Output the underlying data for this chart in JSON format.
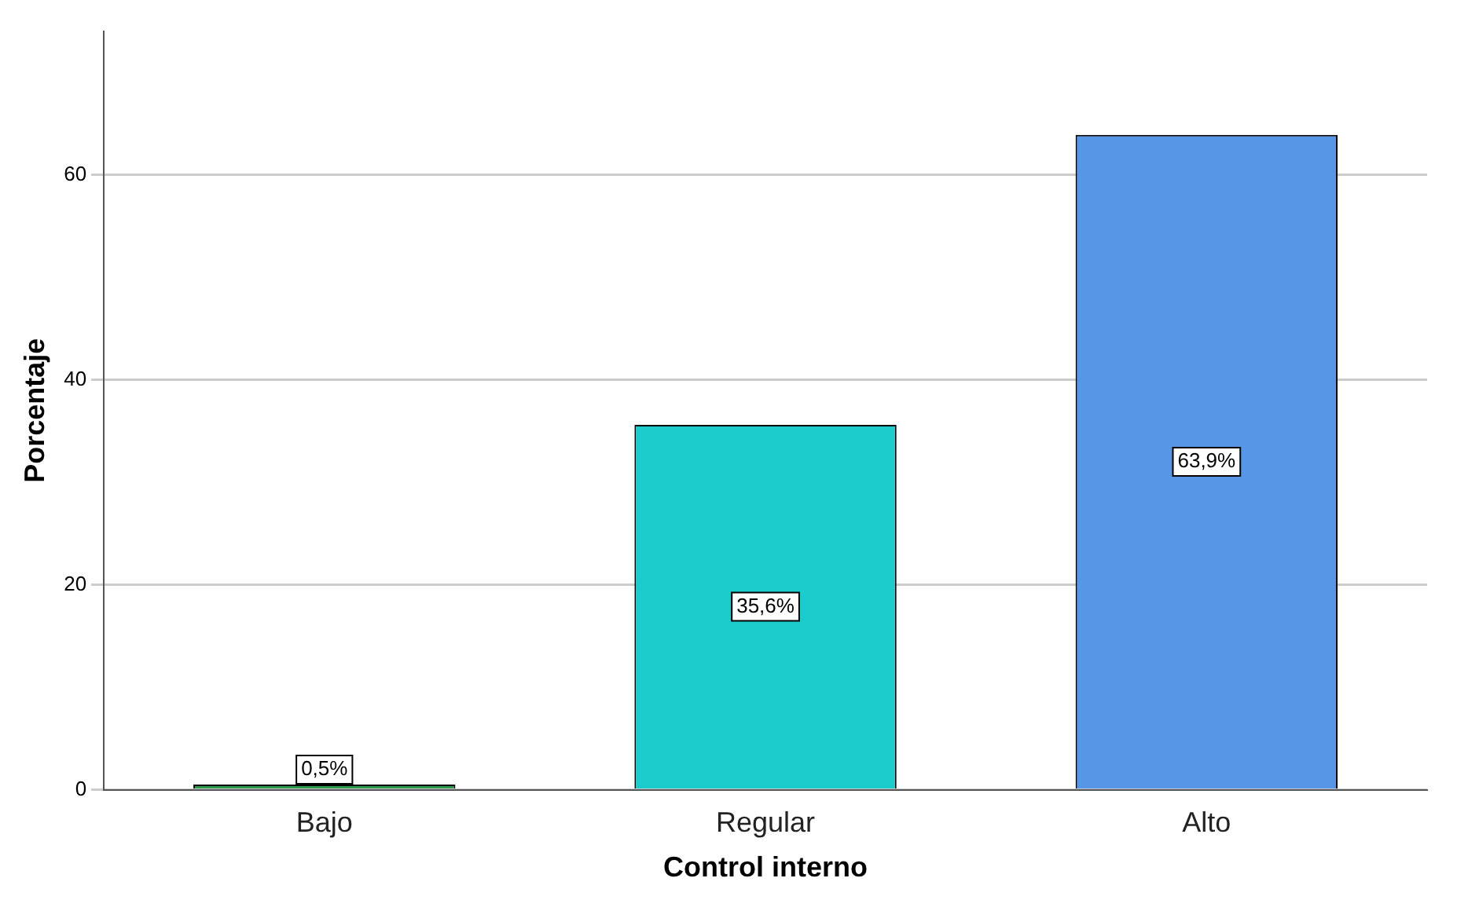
{
  "chart_data": {
    "type": "bar",
    "xlabel": "Control interno",
    "ylabel": "Porcentaje",
    "categories": [
      "Bajo",
      "Regular",
      "Alto"
    ],
    "values": [
      0.5,
      35.6,
      63.9
    ],
    "value_labels": [
      "0,5%",
      "35,6%",
      "63,9%"
    ],
    "colors": [
      "#2e9a4e",
      "#1ccccc",
      "#5596e6"
    ],
    "ylim": [
      0,
      74
    ],
    "yticks": [
      0,
      20,
      40,
      60
    ],
    "grid": "y",
    "legend": false
  }
}
